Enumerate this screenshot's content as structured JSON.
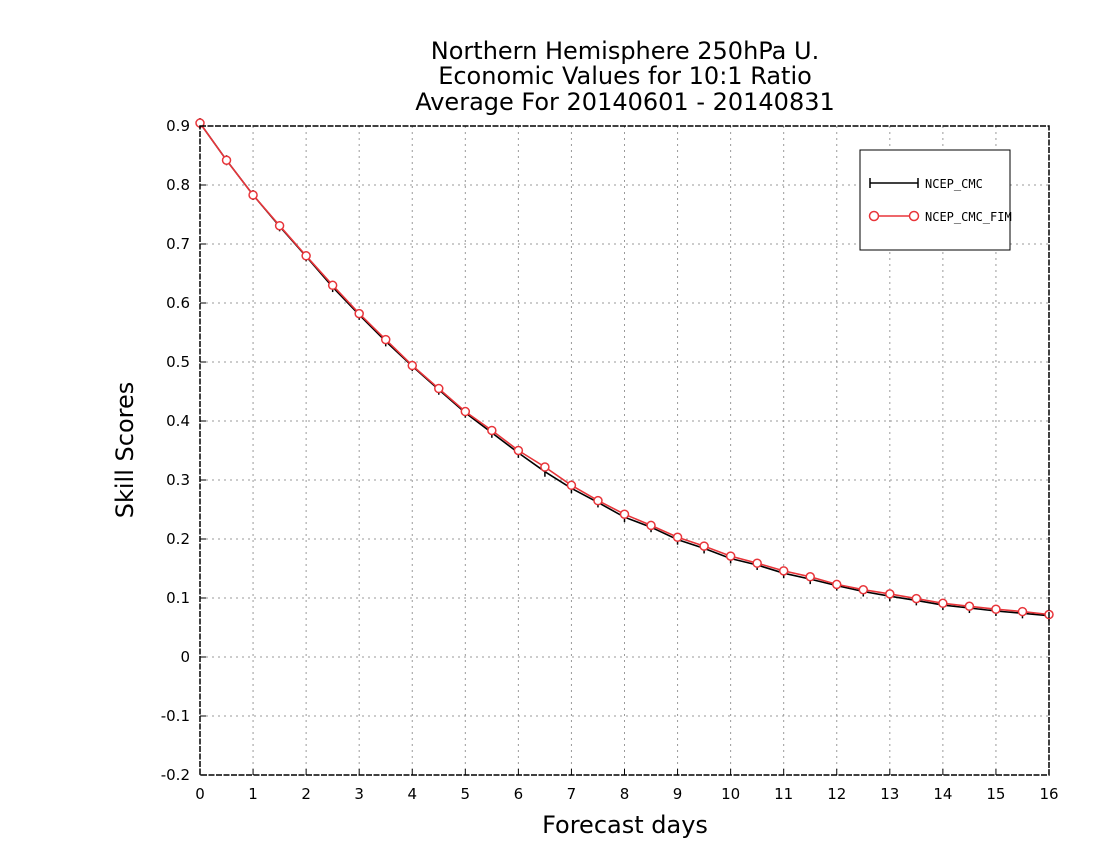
{
  "chart_data": {
    "type": "line",
    "title": [
      "Northern Hemisphere 250hPa U.",
      "Economic Values for 10:1 Ratio",
      "Average For 20140601 - 20140831"
    ],
    "xlabel": "Forecast days",
    "ylabel": "Skill Scores",
    "xlim": [
      0,
      16
    ],
    "ylim": [
      -0.2,
      0.9
    ],
    "xticks": [
      "0",
      "1",
      "2",
      "3",
      "4",
      "5",
      "6",
      "7",
      "8",
      "9",
      "10",
      "11",
      "12",
      "13",
      "14",
      "15",
      "16"
    ],
    "yticks": [
      "-0.2",
      "-0.1",
      "0",
      "0.1",
      "0.2",
      "0.3",
      "0.4",
      "0.5",
      "0.6",
      "0.7",
      "0.8",
      "0.9"
    ],
    "grid": true,
    "legend_position": "top-right",
    "x": [
      0,
      0.5,
      1,
      1.5,
      2,
      2.5,
      3,
      3.5,
      4,
      4.5,
      5,
      5.5,
      6,
      6.5,
      7,
      7.5,
      8,
      8.5,
      9,
      9.5,
      10,
      10.5,
      11,
      11.5,
      12,
      12.5,
      13,
      13.5,
      14,
      14.5,
      15,
      15.5,
      16
    ],
    "series": [
      {
        "name": "NCEP_CMC",
        "color": "#000000",
        "marker": "plus",
        "values": [
          0.905,
          0.842,
          0.783,
          0.73,
          0.679,
          0.627,
          0.58,
          0.535,
          0.493,
          0.453,
          0.414,
          0.38,
          0.346,
          0.314,
          0.286,
          0.262,
          0.237,
          0.22,
          0.199,
          0.184,
          0.167,
          0.156,
          0.142,
          0.132,
          0.121,
          0.111,
          0.103,
          0.096,
          0.088,
          0.083,
          0.078,
          0.074,
          0.07
        ]
      },
      {
        "name": "NCEP_CMC_FIM",
        "color": "#e8353a",
        "marker": "circle",
        "values": [
          0.905,
          0.842,
          0.783,
          0.731,
          0.68,
          0.63,
          0.582,
          0.538,
          0.494,
          0.455,
          0.416,
          0.384,
          0.35,
          0.322,
          0.291,
          0.265,
          0.242,
          0.223,
          0.203,
          0.188,
          0.171,
          0.159,
          0.146,
          0.136,
          0.123,
          0.114,
          0.107,
          0.099,
          0.091,
          0.086,
          0.081,
          0.077,
          0.072
        ]
      }
    ]
  }
}
